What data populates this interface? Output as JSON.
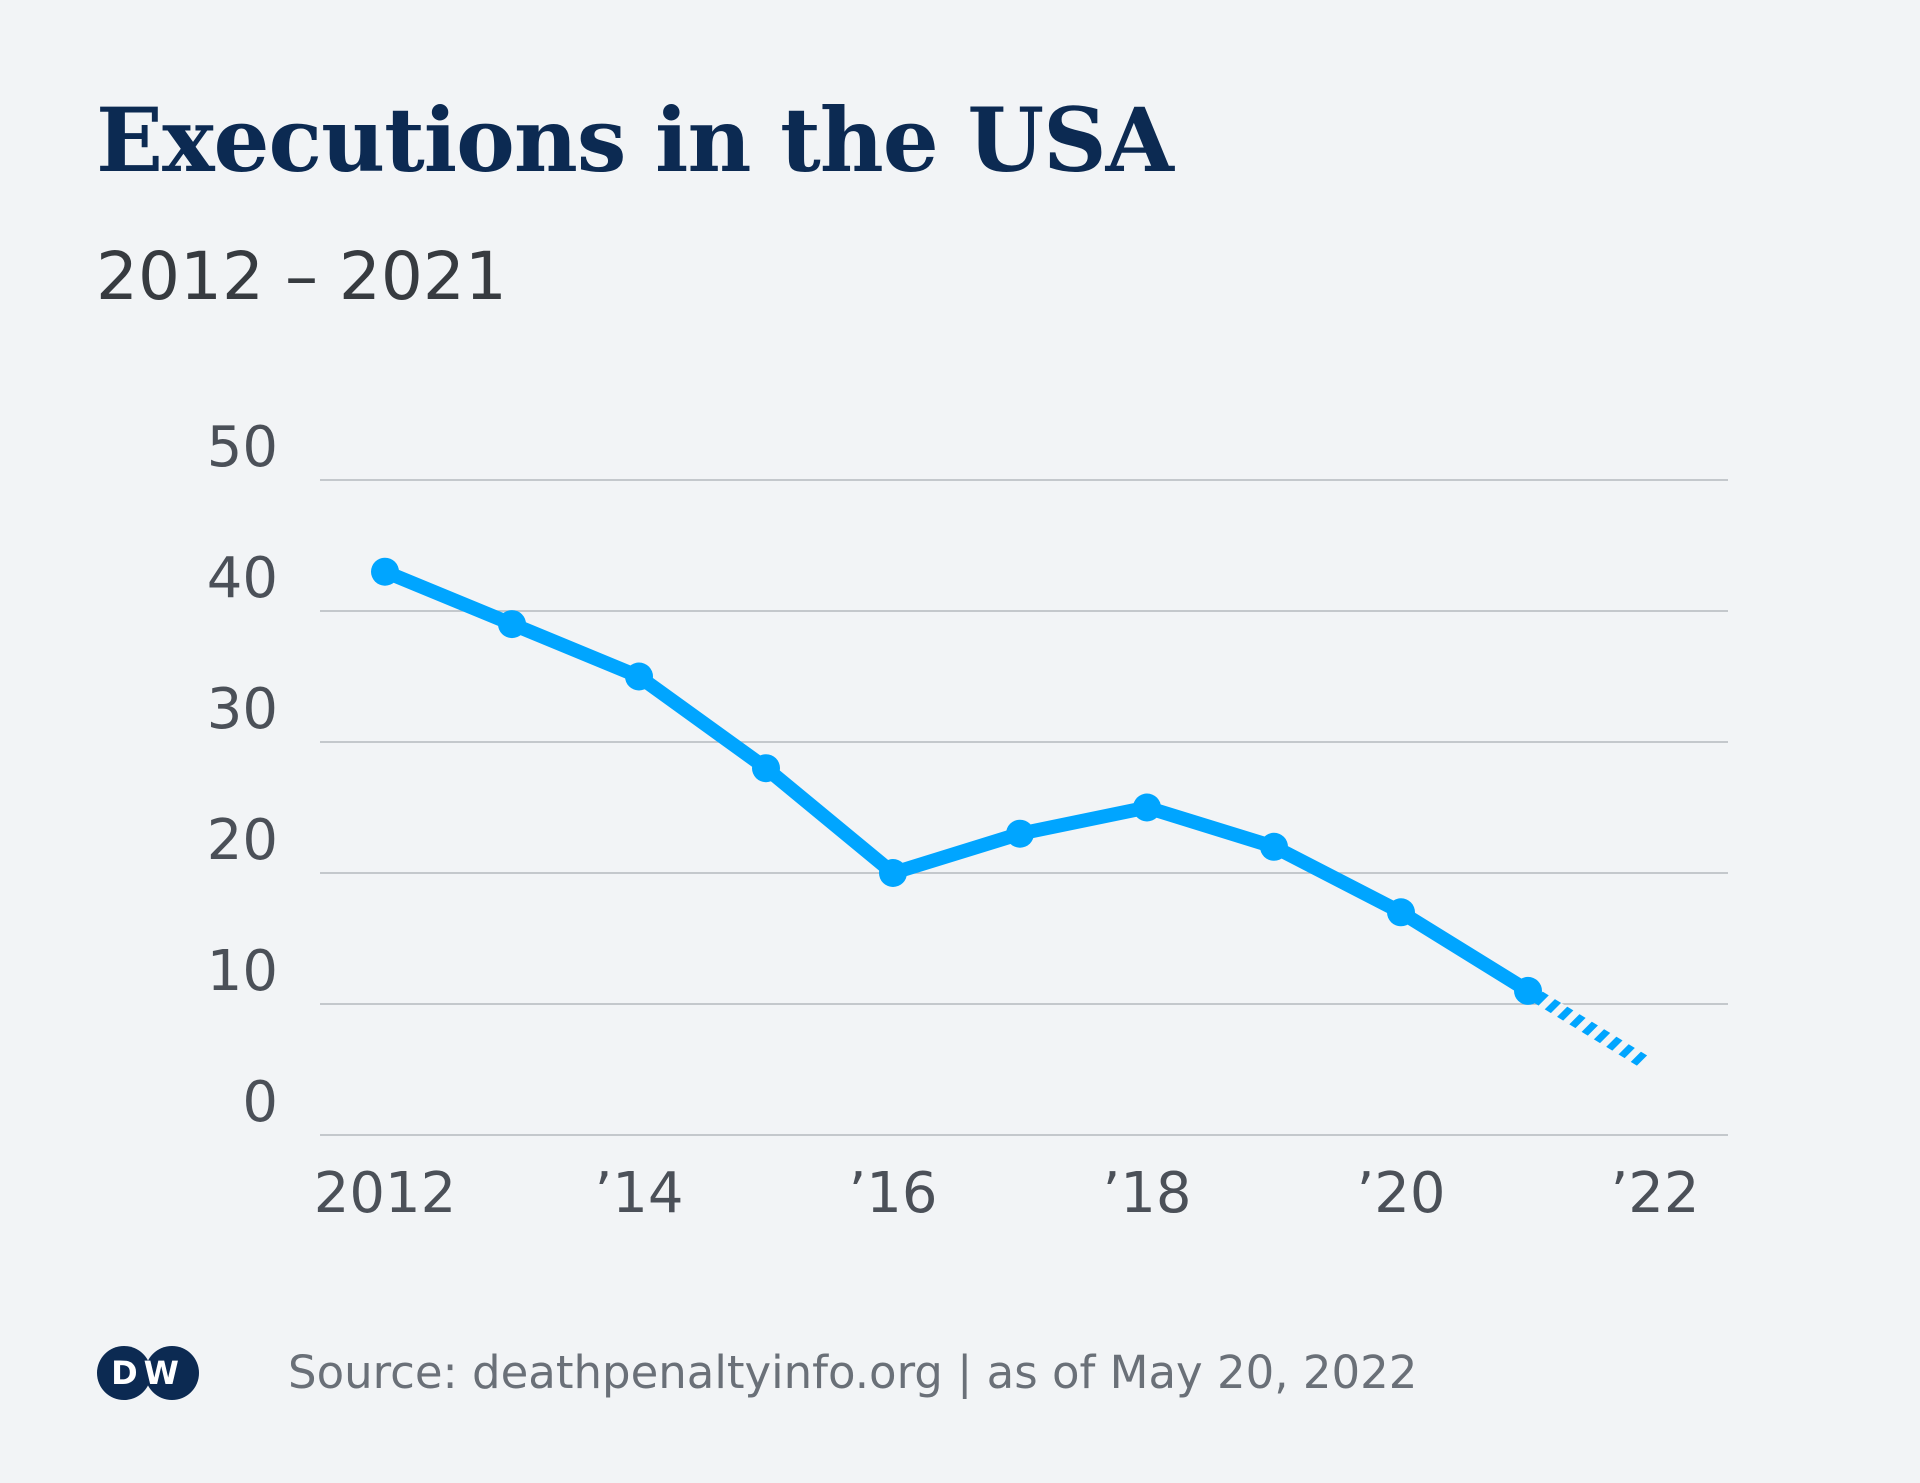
{
  "header": {
    "title": "Executions in the USA",
    "subtitle": "2012 – 2021"
  },
  "footer": {
    "logo_text": "DW",
    "source": "Source: deathpenaltyinfo.org | as of May 20, 2022"
  },
  "chart_data": {
    "type": "line",
    "title": "Executions in the USA",
    "subtitle": "2012 – 2021",
    "xlabel": "",
    "ylabel": "",
    "x": [
      2012,
      2013,
      2014,
      2015,
      2016,
      2017,
      2018,
      2019,
      2020,
      2021
    ],
    "series": [
      {
        "values": [
          43,
          39,
          35,
          28,
          20,
          23,
          25,
          22,
          17,
          11
        ]
      }
    ],
    "projection": {
      "x": [
        2021,
        2022
      ],
      "values": [
        11,
        6
      ],
      "style": "hatched"
    },
    "xlim": [
      2012,
      2022
    ],
    "ylim": [
      0,
      50
    ],
    "yticks": [
      0,
      10,
      20,
      30,
      40,
      50
    ],
    "xticks": [
      2012,
      2014,
      2016,
      2018,
      2020,
      2022
    ],
    "xtick_labels": [
      "2012",
      "’14",
      "’16",
      "’18",
      "’20",
      "’22"
    ],
    "grid": true,
    "legend": "none",
    "colors": {
      "line": "#00a5ff",
      "grid": "#b4b9be",
      "text": "#4b5058"
    }
  }
}
